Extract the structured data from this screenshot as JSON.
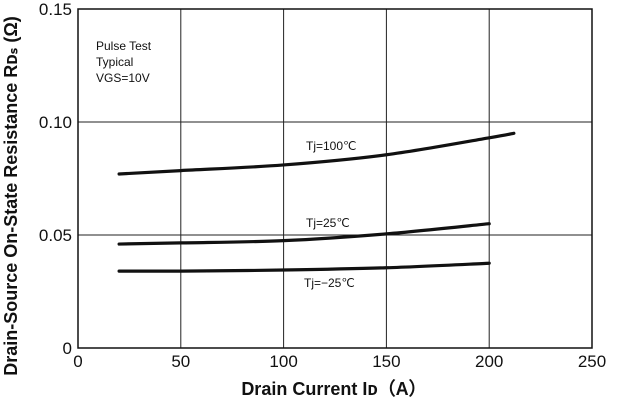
{
  "chart_data": {
    "type": "line",
    "title": "",
    "xlabel": "Drain Current Iᴅ（A）",
    "ylabel": "Drain-Source On-State Resistance Rᴅₛ (Ω)",
    "xlim": [
      0,
      250
    ],
    "ylim": [
      0,
      0.15
    ],
    "x_ticks": [
      0,
      50,
      100,
      150,
      200,
      250
    ],
    "x_tick_labels": [
      "0",
      "50",
      "100",
      "150",
      "200",
      "250"
    ],
    "y_ticks": [
      0,
      0.05,
      0.1,
      0.15
    ],
    "y_tick_labels": [
      "0",
      "0.05",
      "0.10",
      "0.15"
    ],
    "grid": true,
    "annotations": [
      "Pulse  Test",
      "Typical",
      "VGS=10V"
    ],
    "series": [
      {
        "name": "Tj=100℃",
        "x": [
          20,
          50,
          100,
          150,
          200,
          212
        ],
        "y": [
          0.077,
          0.0785,
          0.081,
          0.0855,
          0.093,
          0.095
        ]
      },
      {
        "name": "Tj=25℃",
        "x": [
          20,
          50,
          100,
          150,
          200
        ],
        "y": [
          0.046,
          0.0465,
          0.0475,
          0.0505,
          0.055
        ]
      },
      {
        "name": "Tj=−25℃",
        "x": [
          20,
          50,
          100,
          150,
          200
        ],
        "y": [
          0.034,
          0.034,
          0.0345,
          0.0355,
          0.0375
        ]
      }
    ]
  }
}
